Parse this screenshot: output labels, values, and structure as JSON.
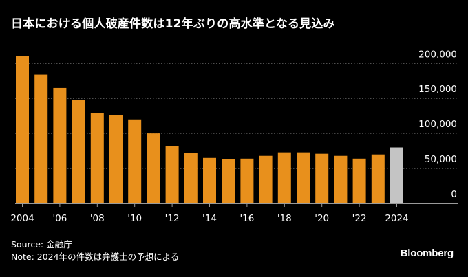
{
  "title": "日本における個人破産件数は12年ぶりの高水準となる見込み",
  "source": "Source: 金融庁",
  "note": "Note: 2024年の件数は弁護士の予想による",
  "brand": "Bloomberg",
  "colors": {
    "bar": "#E8901C",
    "bar_forecast": "#C4C4C4",
    "grid": "#6B6B6B",
    "axis": "#9A9A9A",
    "text": "#FFFFFF",
    "background": "#000000"
  },
  "chart_data": {
    "type": "bar",
    "title": "日本における個人破産件数は12年ぶりの高水準となる見込み",
    "xlabel": "",
    "ylabel": "",
    "ylim": [
      0,
      215000
    ],
    "grid": true,
    "x": [
      2004,
      2005,
      2006,
      2007,
      2008,
      2009,
      2010,
      2011,
      2012,
      2013,
      2014,
      2015,
      2016,
      2017,
      2018,
      2019,
      2020,
      2021,
      2022,
      2023,
      2024
    ],
    "values": [
      211000,
      184000,
      165000,
      148000,
      129000,
      126000,
      120000,
      100000,
      82000,
      72000,
      65000,
      63000,
      64000,
      68000,
      73000,
      73000,
      71000,
      68000,
      64000,
      70000,
      80000
    ],
    "forecast_index": 20,
    "x_tick_labels": [
      "2004",
      "'06",
      "'08",
      "'10",
      "'12",
      "'14",
      "'16",
      "'18",
      "'20",
      "'22",
      "2024"
    ],
    "y_ticks": [
      0,
      50000,
      100000,
      150000,
      200000
    ],
    "y_tick_labels": [
      "0",
      "50,000",
      "100,000",
      "150,000",
      "200,000"
    ]
  }
}
